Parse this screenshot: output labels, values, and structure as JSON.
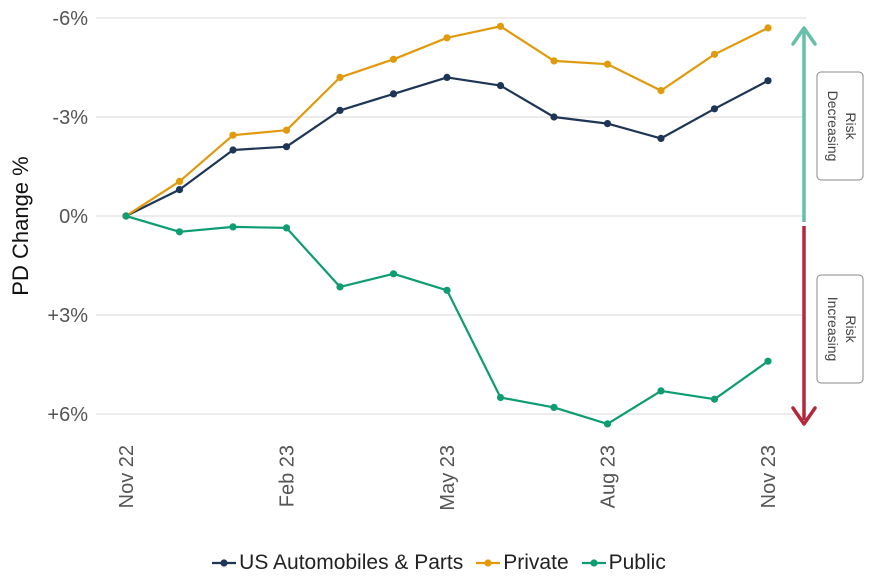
{
  "chart_data": {
    "type": "line",
    "ylabel": "PD Change %",
    "x": [
      "Nov 22",
      "Dec 22",
      "Jan 23",
      "Feb 23",
      "Mar 23",
      "Apr 23",
      "May 23",
      "Jun 23",
      "Jul 23",
      "Aug 23",
      "Sep 23",
      "Oct 23",
      "Nov 23"
    ],
    "x_tick_labels": [
      "Nov 22",
      "Feb 23",
      "May 23",
      "Aug 23",
      "Nov 23"
    ],
    "y_tick_labels": [
      "-6%",
      "-3%",
      "0%",
      "+3%",
      "+6%"
    ],
    "y_axis_inverted": true,
    "ylim": [
      -6.4,
      6.3
    ],
    "grid": "horizontal",
    "legend_position": "bottom-center",
    "series": [
      {
        "name": "US Automobiles & Parts",
        "color": "#1f3556",
        "values": [
          0,
          -0.8,
          -2.0,
          -2.1,
          -3.2,
          -3.7,
          -4.2,
          -3.95,
          -3.0,
          -2.8,
          -2.35,
          -3.25,
          -4.1
        ]
      },
      {
        "name": "Private",
        "color": "#e09a0b",
        "values": [
          0,
          -1.05,
          -2.45,
          -2.6,
          -4.2,
          -4.75,
          -5.4,
          -5.75,
          -4.7,
          -4.6,
          -3.8,
          -4.9,
          -5.7
        ]
      },
      {
        "name": "Public",
        "color": "#0e9d72",
        "values": [
          0,
          0.48,
          0.33,
          0.36,
          2.15,
          1.75,
          2.25,
          5.5,
          5.8,
          6.3,
          5.3,
          5.55,
          4.4
        ]
      }
    ],
    "annotations": [
      {
        "text": [
          "Risk",
          "Decreasing"
        ],
        "color": "#67bfaa",
        "direction": "up"
      },
      {
        "text": [
          "Risk",
          "Increasing"
        ],
        "color": "#b3283c",
        "direction": "down"
      }
    ]
  }
}
